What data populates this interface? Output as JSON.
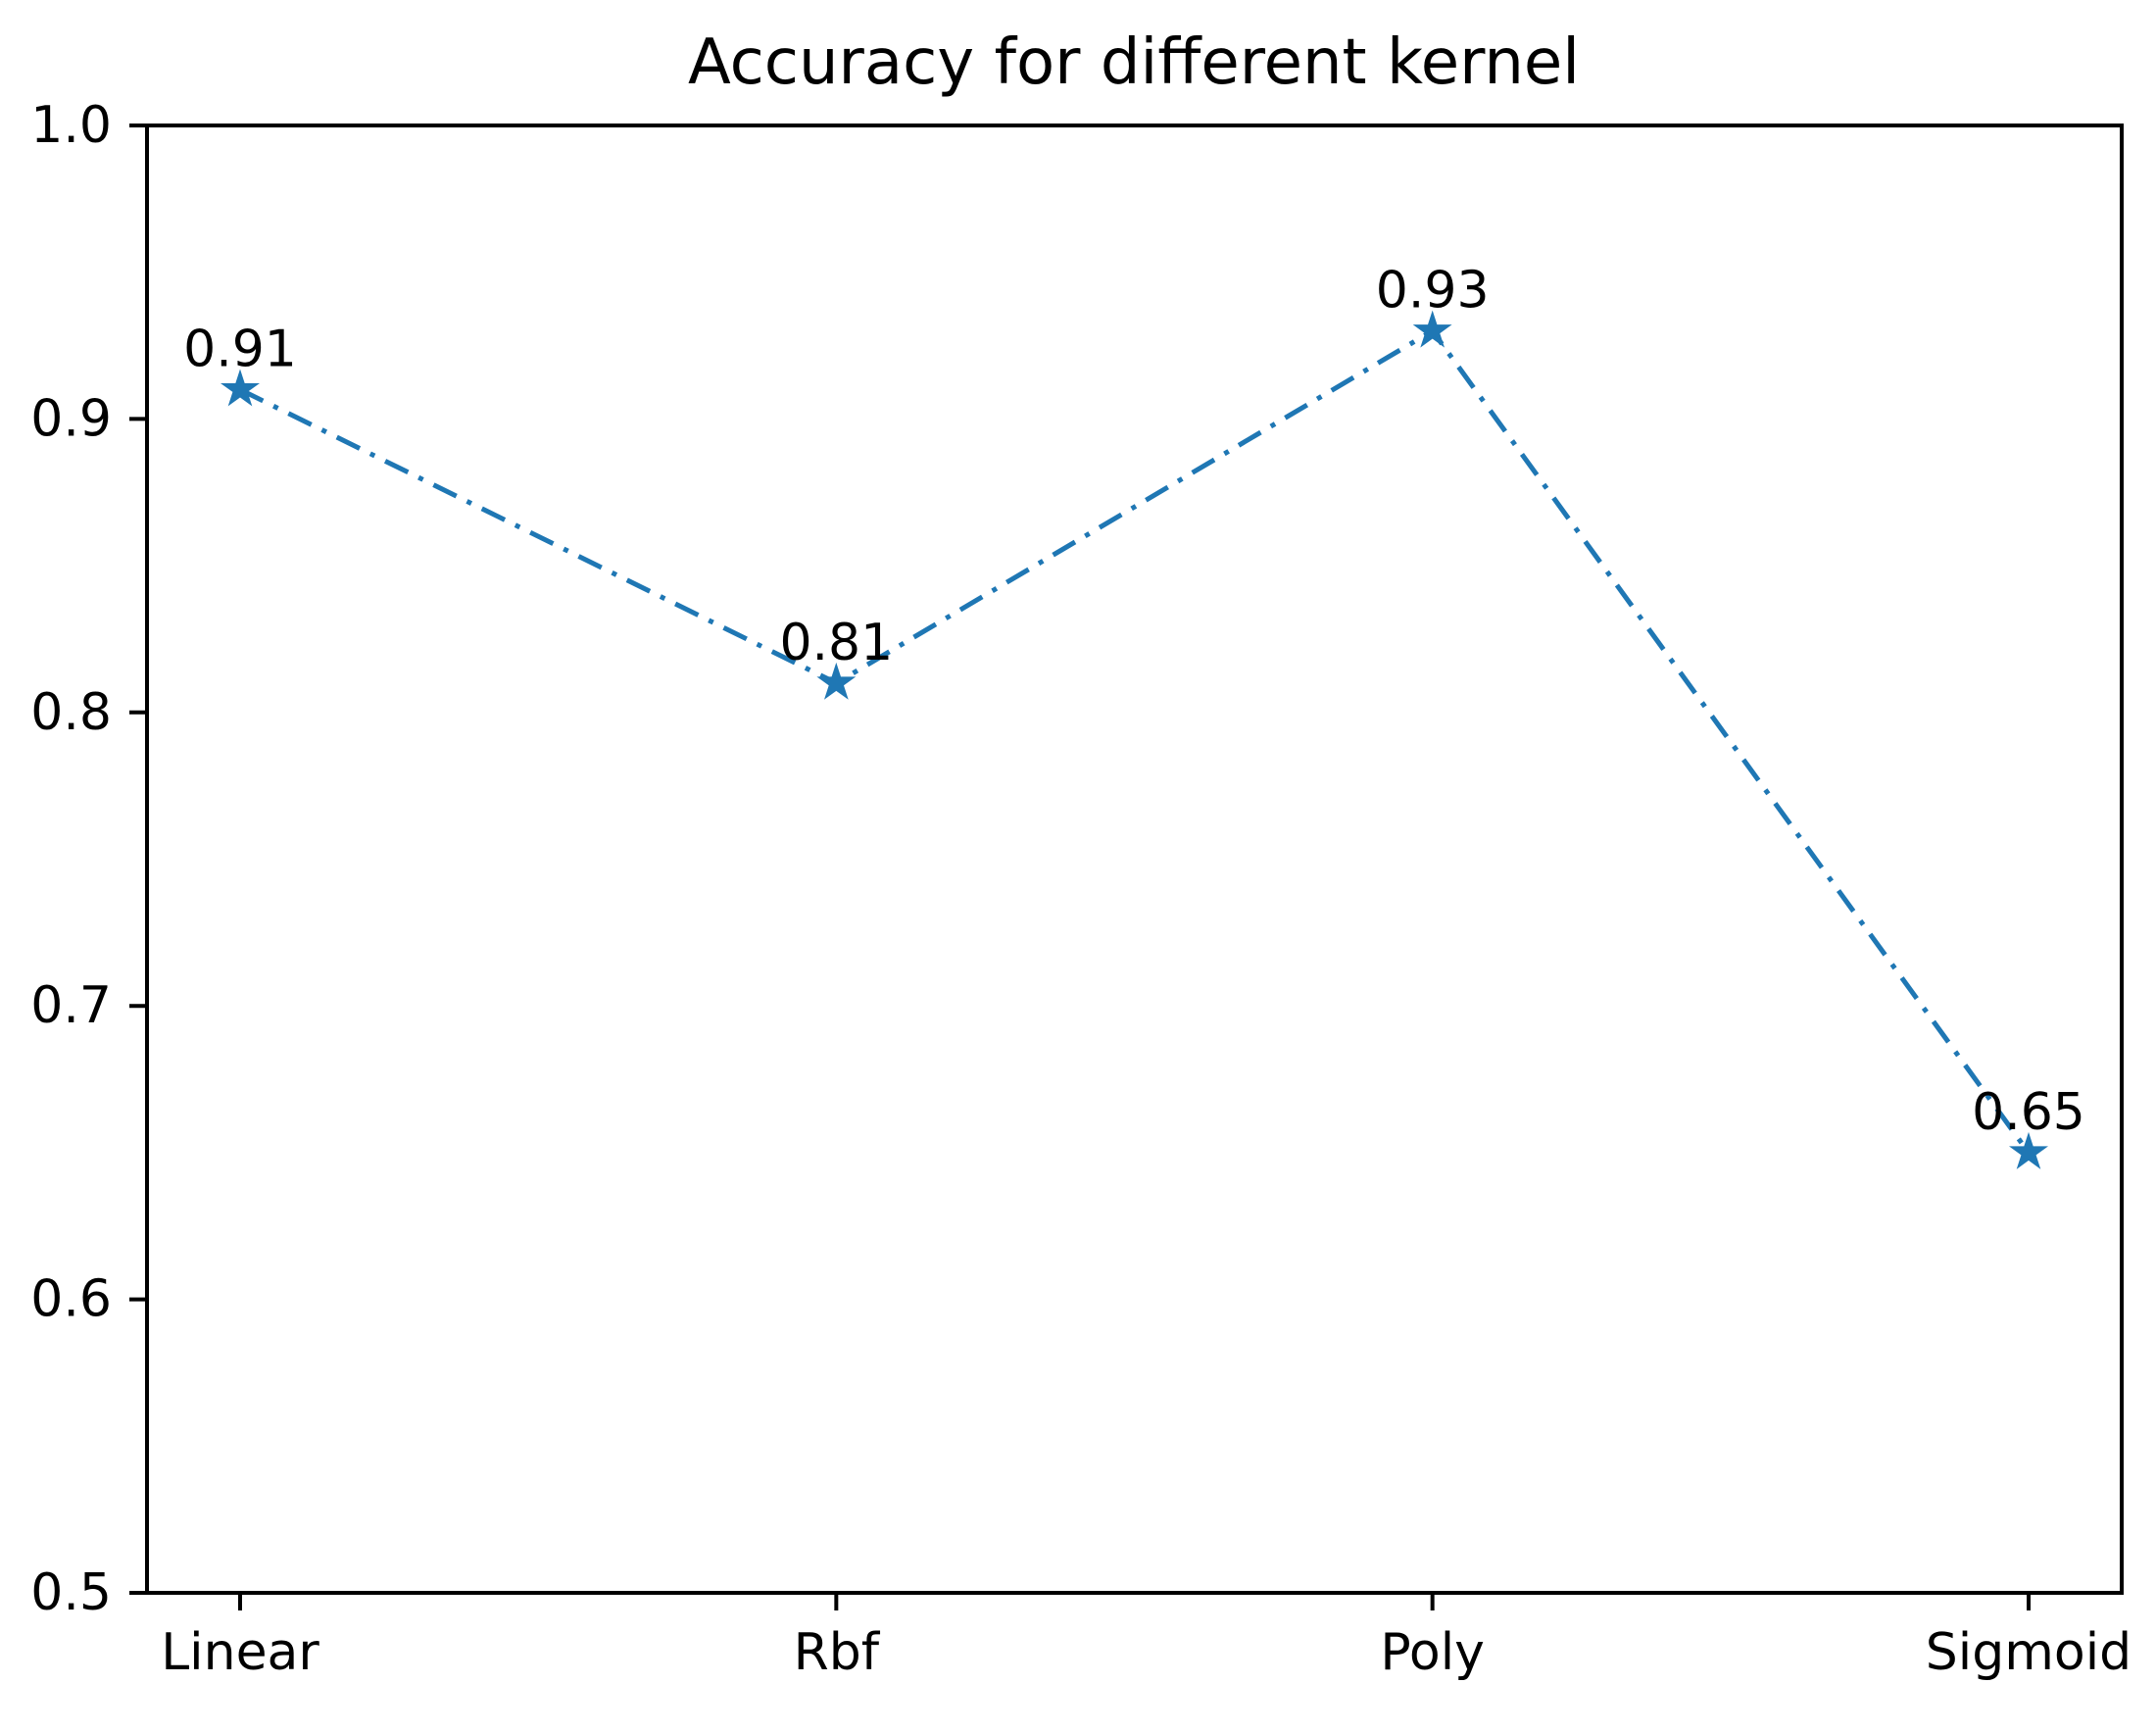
{
  "chart_data": {
    "type": "line",
    "title": "Accuracy for different kernel",
    "categories": [
      "Linear",
      "Rbf",
      "Poly",
      "Sigmoid"
    ],
    "series": [
      {
        "name": "accuracy",
        "values": [
          0.91,
          0.81,
          0.93,
          0.65
        ]
      }
    ],
    "point_labels": [
      "0.91",
      "0.81",
      "0.93",
      "0.65"
    ],
    "xlabel": "",
    "ylabel": "",
    "ylim": [
      0.5,
      1.0
    ],
    "yticks": [
      0.5,
      0.6,
      0.7,
      0.8,
      0.9,
      1.0
    ],
    "ytick_labels": [
      "0.5",
      "0.6",
      "0.7",
      "0.8",
      "0.9",
      "1.0"
    ],
    "grid": false,
    "legend": false,
    "line_style": "dashdot",
    "marker": "star",
    "colors": {
      "line": "#1f77b4",
      "marker": "#1f77b4",
      "text": "#000000",
      "axis": "#000000",
      "background": "#ffffff"
    }
  }
}
